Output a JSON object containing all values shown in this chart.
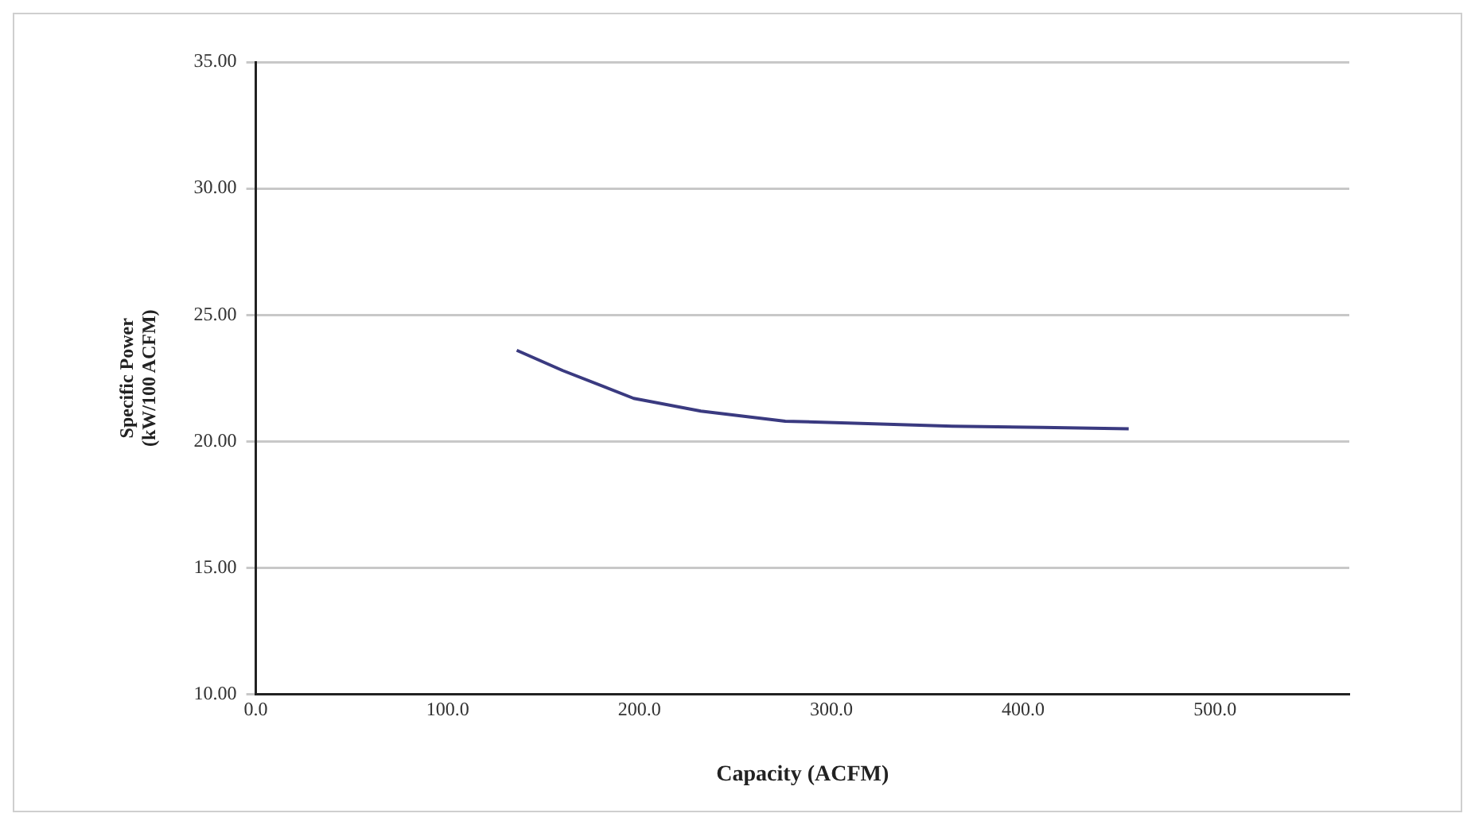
{
  "chart_data": {
    "type": "line",
    "xlabel": "Capacity (ACFM)",
    "ylabel": "Specific Power\n(kW/100 ACFM)",
    "series": [
      {
        "color": "#3a3a80",
        "x": [
          136,
          160,
          197,
          232,
          276,
          319,
          363,
          410,
          455
        ],
        "values": [
          23.6,
          22.8,
          21.7,
          21.2,
          20.8,
          20.7,
          20.6,
          20.55,
          20.5
        ]
      }
    ],
    "xlim": [
      0,
      570
    ],
    "xticks": [
      {
        "value": 0,
        "label": "0.0"
      },
      {
        "value": 100,
        "label": "100.0"
      },
      {
        "value": 200,
        "label": "200.0"
      },
      {
        "value": 300,
        "label": "300.0"
      },
      {
        "value": 400,
        "label": "400.0"
      },
      {
        "value": 500,
        "label": "500.0"
      }
    ],
    "ylim": [
      10,
      35
    ],
    "yticks": [
      {
        "value": 10,
        "label": "10.00"
      },
      {
        "value": 15,
        "label": "15.00"
      },
      {
        "value": 20,
        "label": "20.00"
      },
      {
        "value": 25,
        "label": "25.00"
      },
      {
        "value": 30,
        "label": "30.00"
      },
      {
        "value": 35,
        "label": "35.00"
      }
    ],
    "grid": "y",
    "legend": false,
    "marker": "none",
    "line_style": "solid"
  }
}
